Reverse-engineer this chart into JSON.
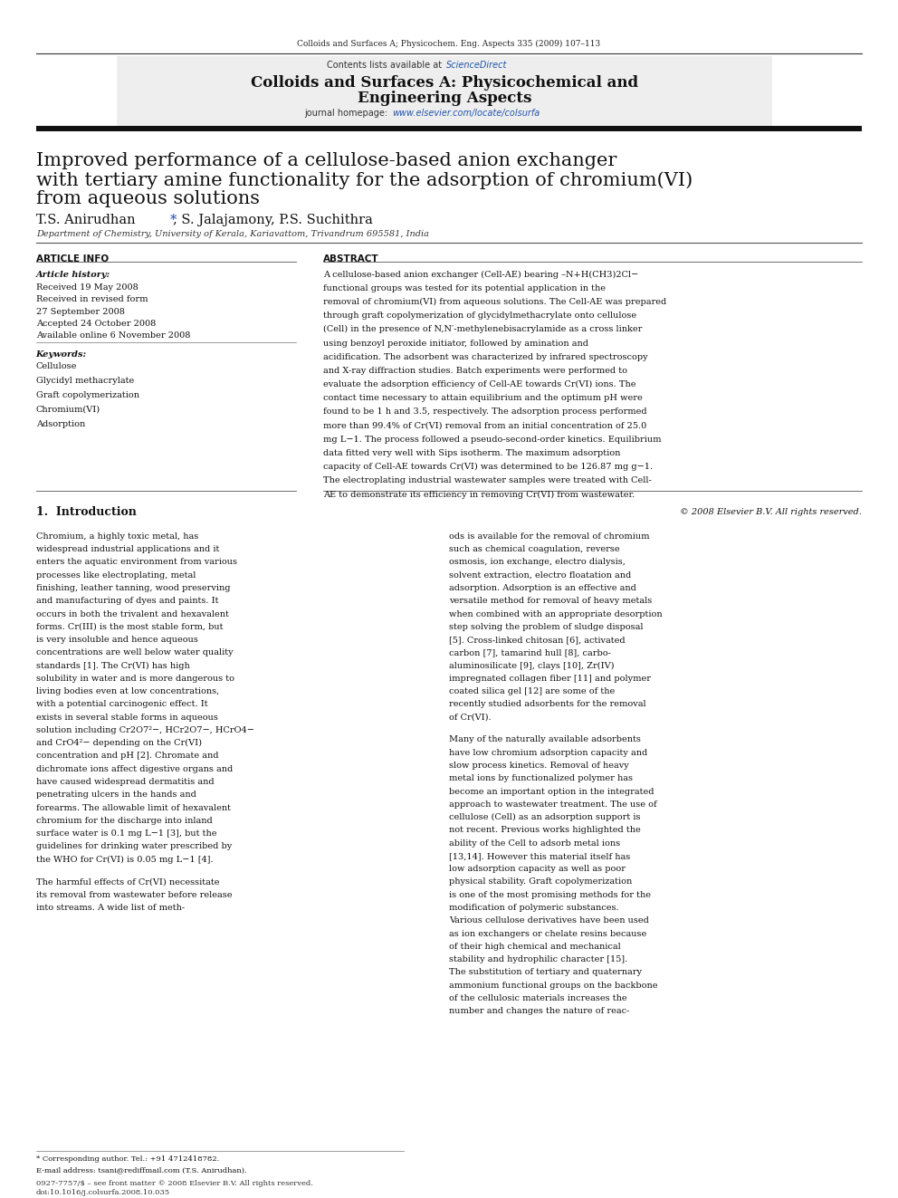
{
  "page_width": 9.92,
  "page_height": 13.23,
  "bg_color": "#ffffff",
  "header_journal_text": "Colloids and Surfaces A; Physicochem. Eng. Aspects 335 (2009) 107–113",
  "header_journal_color": "#000000",
  "journal_header_bg": "#f0f0f0",
  "contents_text": "Contents lists available at ",
  "sciencedirect_text": "ScienceDirect",
  "sciencedirect_color": "#2255aa",
  "journal_title_line1": "Colloids and Surfaces A: Physicochemical and",
  "journal_title_line2": "Engineering Aspects",
  "journal_homepage_text": "journal homepage: ",
  "journal_url": "www.elsevier.com/locate/colsurfa",
  "journal_url_color": "#2255aa",
  "article_title_line1": "Improved performance of a cellulose-based anion exchanger",
  "article_title_line2": "with tertiary amine functionality for the adsorption of chromium(VI)",
  "article_title_line3": "from aqueous solutions",
  "authors": "T.S. Anirudhan*, S. Jalajamony, P.S. Suchithra",
  "affiliation": "Department of Chemistry, University of Kerala, Kariavattom, Trivandrum 695581, India",
  "article_info_header": "ARTICLE INFO",
  "abstract_header": "ABSTRACT",
  "article_history_label": "Article history:",
  "received": "Received 19 May 2008",
  "received_revised": "Received in revised form",
  "revised_date": "27 September 2008",
  "accepted": "Accepted 24 October 2008",
  "available": "Available online 6 November 2008",
  "keywords_label": "Keywords:",
  "keyword1": "Cellulose",
  "keyword2": "Glycidyl methacrylate",
  "keyword3": "Graft copolymerization",
  "keyword4": "Chromium(VI)",
  "keyword5": "Adsorption",
  "abstract_text": "A cellulose-based anion exchanger (Cell-AE) bearing –N+H(CH3)2Cl− functional groups was tested for its potential application in the removal of chromium(VI) from aqueous solutions. The Cell-AE was prepared through graft copolymerization of glycidylmethacrylate onto cellulose (Cell) in the presence of N,N′-methylenebisacrylamide as a cross linker using benzoyl peroxide initiator, followed by amination and acidification. The adsorbent was characterized by infrared spectroscopy and X-ray diffraction studies. Batch experiments were performed to evaluate the adsorption efficiency of Cell-AE towards Cr(VI) ions. The contact time necessary to attain equilibrium and the optimum pH were found to be 1 h and 3.5, respectively. The adsorption process performed more than 99.4% of Cr(VI) removal from an initial concentration of 25.0 mg L−1. The process followed a pseudo-second-order kinetics. Equilibrium data fitted very well with Sips isotherm. The maximum adsorption capacity of Cell-AE towards Cr(VI) was determined to be 126.87 mg g−1. The electroplating industrial wastewater samples were treated with Cell-AE to demonstrate its efficiency in removing Cr(VI) from wastewater.",
  "copyright": "© 2008 Elsevier B.V. All rights reserved.",
  "intro_heading": "1.  Introduction",
  "intro_col1_para1": "Chromium, a highly toxic metal, has widespread industrial applications and it enters the aquatic environment from various processes like electroplating, metal finishing, leather tanning, wood preserving and manufacturing of dyes and paints. It occurs in both the trivalent and hexavalent forms. Cr(III) is the most stable form, but is very insoluble and hence aqueous concentrations are well below water quality standards [1]. The Cr(VI) has high solubility in water and is more dangerous to living bodies even at low concentrations, with a potential carcinogenic effect. It exists in several stable forms in aqueous solution including Cr2O7²−, HCr2O7−, HCrO4− and CrO4²− depending on the Cr(VI) concentration and pH [2]. Chromate and dichromate ions affect digestive organs and have caused widespread dermatitis and penetrating ulcers in the hands and forearms. The allowable limit of hexavalent chromium for the discharge into inland surface water is 0.1 mg L−1 [3], but the guidelines for drinking water prescribed by the WHO for Cr(VI) is 0.05 mg L−1 [4].",
  "intro_col1_para2": "The harmful effects of Cr(VI) necessitate its removal from wastewater before release into streams. A wide list of meth-",
  "intro_col2_para1": "ods is available for the removal of chromium such as chemical coagulation, reverse osmosis, ion exchange, electro dialysis, solvent extraction, electro floatation and adsorption. Adsorption is an effective and versatile method for removal of heavy metals when combined with an appropriate desorption step solving the problem of sludge disposal [5]. Cross-linked chitosan [6], activated carbon [7], tamarind hull [8], carbo-aluminosilicate [9], clays [10], Zr(IV) impregnated collagen fiber [11] and polymer coated silica gel [12] are some of the recently studied adsorbents for the removal of Cr(VI).",
  "intro_col2_para2": "Many of the naturally available adsorbents have low chromium adsorption capacity and slow process kinetics. Removal of heavy metal ions by functionalized polymer has become an important option in the integrated approach to wastewater treatment. The use of cellulose (Cell) as an adsorption support is not recent. Previous works highlighted the ability of the Cell to adsorb metal ions [13,14]. However this material itself has low adsorption capacity as well as poor physical stability. Graft copolymerization is one of the most promising methods for the modification of polymeric substances. Various cellulose derivatives have been used as ion exchangers or chelate resins because of their high chemical and mechanical stability and hydrophilic character [15]. The substitution of tertiary and quaternary ammonium functional groups on the backbone of the cellulosic materials increases the number and changes the nature of reac-",
  "footer_text": "0927-7757/$ – see front matter © 2008 Elsevier B.V. All rights reserved.",
  "footer_doi": "doi:10.1016/j.colsurfa.2008.10.035"
}
